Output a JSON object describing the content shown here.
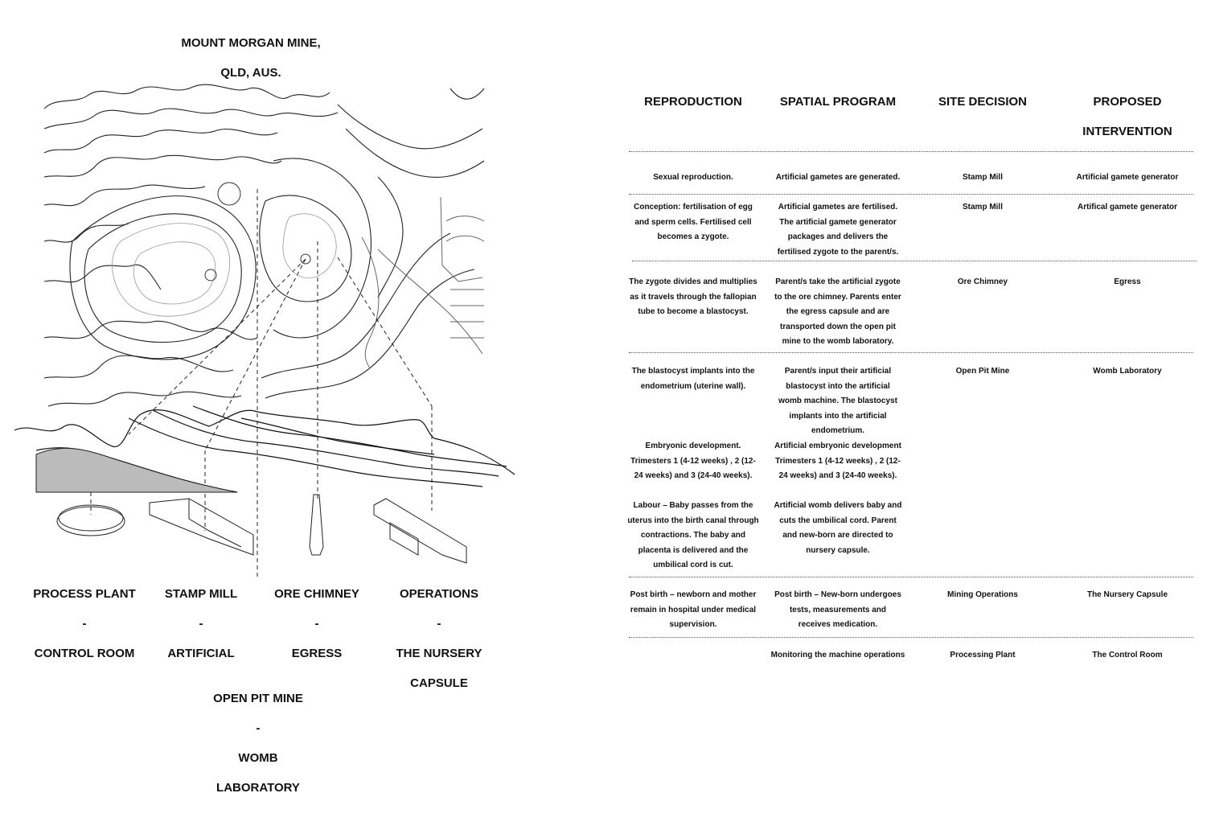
{
  "map": {
    "title_line1": "MOUNT MORGAN MINE,",
    "title_line2": "QLD, AUS."
  },
  "sites": [
    {
      "name": "PROCESS PLANT",
      "dash": "-",
      "use": "CONTROL ROOM",
      "use2": ""
    },
    {
      "name": "STAMP MILL",
      "dash": "-",
      "use": "ARTIFICIAL",
      "use2": ""
    },
    {
      "name": "ORE CHIMNEY",
      "dash": "-",
      "use": "EGRESS",
      "use2": ""
    },
    {
      "name": "OPERATIONS",
      "dash": "-",
      "use": "THE NURSERY",
      "use2": "CAPSULE"
    },
    {
      "name": "OPEN PIT MINE",
      "dash": "-",
      "use": "WOMB",
      "use2": "LABORATORY"
    }
  ],
  "table": {
    "headers": [
      "REPRODUCTION",
      "SPATIAL PROGRAM",
      "SITE DECISION",
      "PROPOSED",
      "INTERVENTION"
    ],
    "rows": [
      [
        "Sexual reproduction.",
        "Artificial gametes are generated.",
        "Stamp Mill",
        "Artificial gamete generator"
      ],
      [
        "Conception: fertilisation of egg and sperm cells.  Fertilised cell becomes a zygote.",
        "Artificial gametes are fertilised. The artificial gamete generator packages and delivers the fertilised zygote to the parent/s.",
        "Stamp Mill",
        "Artifical gamete generator"
      ],
      [
        "The zygote divides and multiplies as it travels through the fallopian tube to become a blastocyst.",
        "Parent/s take the artificial zygote to the ore chimney. Parents enter the egress capsule and are transported down the open pit mine to the womb laboratory.",
        "Ore Chimney",
        "Egress"
      ],
      [
        "The blastocyst implants into the endometrium (uterine wall).",
        "Parent/s input their artificial blastocyst into the artificial womb machine. The blastocyst implants into the artificial endometrium.",
        "Open Pit Mine",
        "Womb Laboratory"
      ],
      [
        "Embryonic development. Trimesters 1 (4-12 weeks) , 2 (12-24 weeks) and 3 (24-40 weeks).",
        "Artificial embryonic development Trimesters 1 (4-12 weeks) , 2 (12-24 weeks) and 3 (24-40 weeks).",
        "",
        ""
      ],
      [
        "Labour – Baby passes from the uterus into the birth canal through contractions. The baby and placenta is delivered and the umbilical cord is cut.",
        "Artificial womb delivers baby and cuts the umbilical cord. Parent and new-born are directed to nursery capsule.",
        "",
        ""
      ],
      [
        "Post birth – newborn and mother remain in hospital under medical supervision.",
        "Post birth – New-born undergoes tests, measurements and receives medication.",
        "Mining Operations",
        "The Nursery Capsule"
      ],
      [
        "",
        "Monitoring the machine operations",
        "Processing Plant",
        "The Control Room"
      ]
    ]
  }
}
